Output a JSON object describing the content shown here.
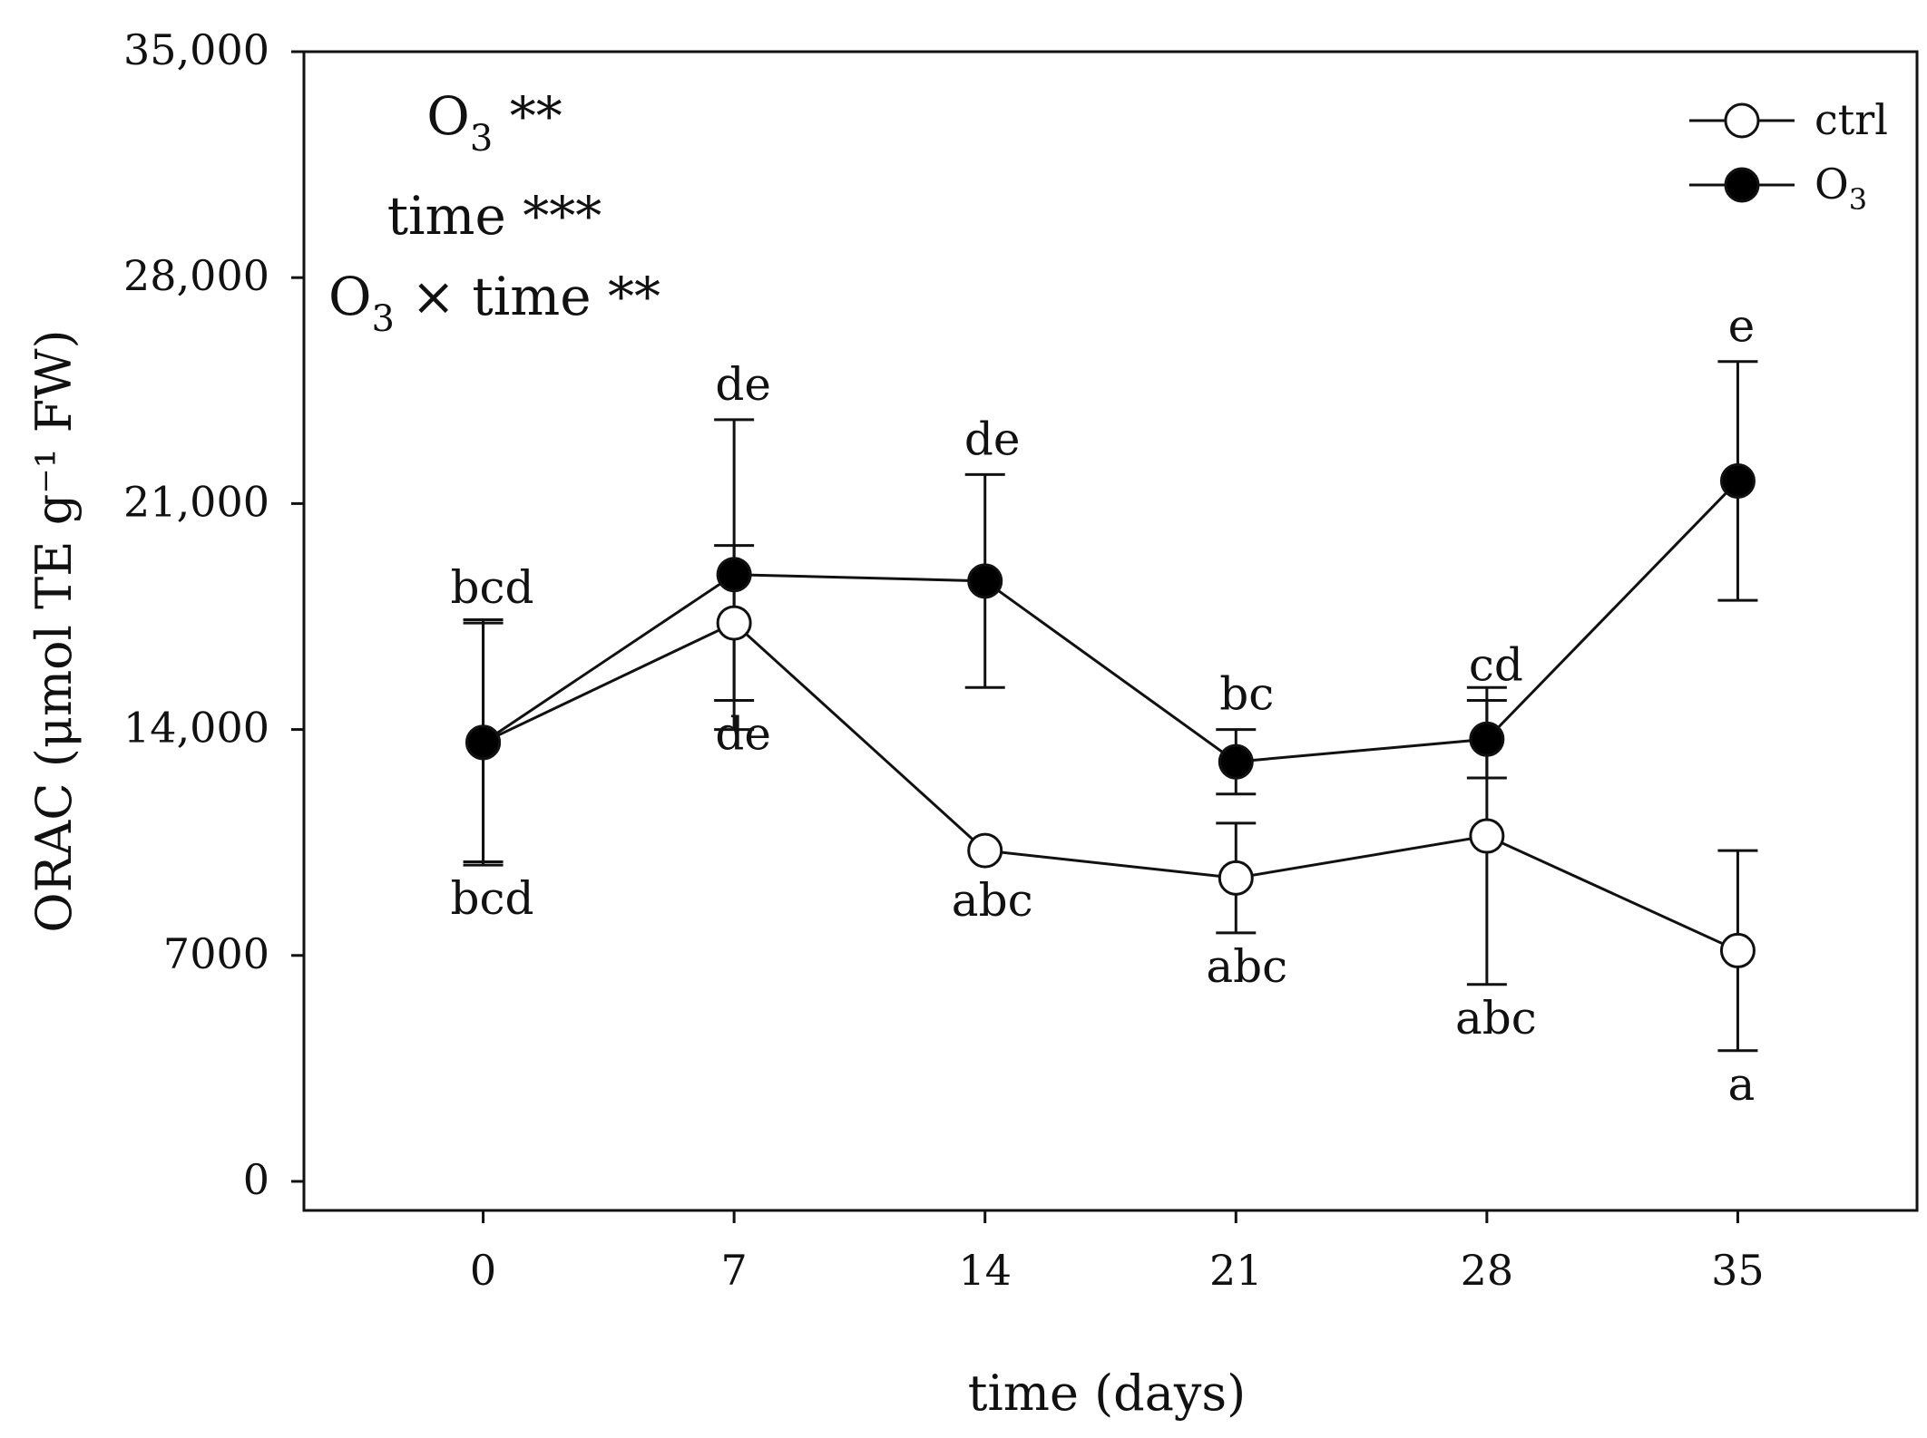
{
  "chart_data": {
    "type": "line",
    "xlabel": "time (days)",
    "ylabel": "ORAC (μmol TE g⁻¹ FW)",
    "x": [
      0,
      7,
      14,
      21,
      28,
      35
    ],
    "xlim": [
      -5,
      40
    ],
    "ylim": [
      -900,
      35000
    ],
    "yticks": [
      0,
      7000,
      14000,
      21000,
      28000,
      35000
    ],
    "ytick_labels": [
      "0",
      "7000",
      "14,000",
      "21,000",
      "28,000",
      "35,000"
    ],
    "xtick_labels": [
      "0",
      "7",
      "14",
      "21",
      "28",
      "35"
    ],
    "series": [
      {
        "name": "ctrl",
        "marker": "open-circle",
        "values": [
          13600,
          17300,
          10250,
          9400,
          10700,
          7150
        ],
        "errors": [
          3800,
          2400,
          0,
          1700,
          4600,
          3100
        ],
        "letters": [
          "bcd",
          "de",
          "abc",
          "abc",
          "abc",
          "a"
        ]
      },
      {
        "name": "O₃",
        "marker": "filled-circle",
        "values": [
          13600,
          18800,
          18600,
          13000,
          13700,
          21700
        ],
        "errors": [
          3700,
          4800,
          3300,
          1000,
          1200,
          3700
        ],
        "letters": [
          "bcd",
          "de",
          "de",
          "bc",
          "cd",
          "e"
        ]
      }
    ],
    "annotations": [
      {
        "main": "O",
        "sub": "3",
        "tail": " **"
      },
      {
        "main": "time ***",
        "sub": "",
        "tail": ""
      },
      {
        "main": "O",
        "sub": "3",
        "tail": " × time **"
      }
    ],
    "legend_position": "top-right"
  }
}
